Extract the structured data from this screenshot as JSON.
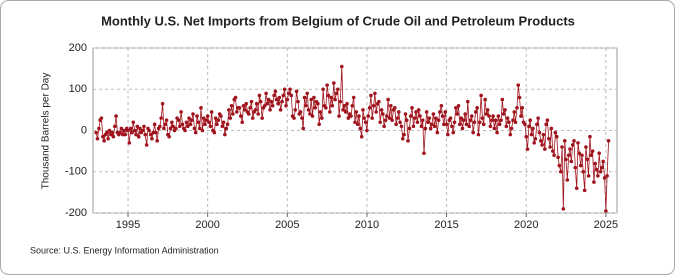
{
  "chart_data": {
    "type": "line",
    "title": "Monthly U.S. Net Imports from Belgium of Crude Oil and Petroleum Products",
    "y_label": "Thousand Barrels per Day",
    "source": "Source: U.S. Energy Information Administration",
    "xlim": [
      1992.8,
      2025.7
    ],
    "xticks": [
      1995,
      2000,
      2005,
      2010,
      2015,
      2020,
      2025
    ],
    "ylim": [
      -200,
      200
    ],
    "yticks": [
      -200,
      -100,
      0,
      100,
      200
    ],
    "grid": true,
    "series": [
      {
        "name": "Net Imports",
        "color": "#a0141e",
        "x": [
          1993.0,
          1993.08,
          1993.17,
          1993.25,
          1993.33,
          1993.42,
          1993.5,
          1993.58,
          1993.67,
          1993.75,
          1993.83,
          1993.92,
          1994.0,
          1994.08,
          1994.17,
          1994.25,
          1994.33,
          1994.42,
          1994.5,
          1994.58,
          1994.67,
          1994.75,
          1994.83,
          1994.92,
          1995.0,
          1995.08,
          1995.17,
          1995.25,
          1995.33,
          1995.42,
          1995.5,
          1995.58,
          1995.67,
          1995.75,
          1995.83,
          1995.92,
          1996.0,
          1996.08,
          1996.17,
          1996.25,
          1996.33,
          1996.42,
          1996.5,
          1996.58,
          1996.67,
          1996.75,
          1996.83,
          1996.92,
          1997.0,
          1997.08,
          1997.17,
          1997.25,
          1997.33,
          1997.42,
          1997.5,
          1997.58,
          1997.67,
          1997.75,
          1997.83,
          1997.92,
          1998.0,
          1998.08,
          1998.17,
          1998.25,
          1998.33,
          1998.42,
          1998.5,
          1998.58,
          1998.67,
          1998.75,
          1998.83,
          1998.92,
          1999.0,
          1999.08,
          1999.17,
          1999.25,
          1999.33,
          1999.42,
          1999.5,
          1999.58,
          1999.67,
          1999.75,
          1999.83,
          1999.92,
          2000.0,
          2000.08,
          2000.17,
          2000.25,
          2000.33,
          2000.42,
          2000.5,
          2000.58,
          2000.67,
          2000.75,
          2000.83,
          2000.92,
          2001.0,
          2001.08,
          2001.17,
          2001.25,
          2001.33,
          2001.42,
          2001.5,
          2001.58,
          2001.67,
          2001.75,
          2001.83,
          2001.92,
          2002.0,
          2002.08,
          2002.17,
          2002.25,
          2002.33,
          2002.42,
          2002.5,
          2002.58,
          2002.67,
          2002.75,
          2002.83,
          2002.92,
          2003.0,
          2003.08,
          2003.17,
          2003.25,
          2003.33,
          2003.42,
          2003.5,
          2003.58,
          2003.67,
          2003.75,
          2003.83,
          2003.92,
          2004.0,
          2004.08,
          2004.17,
          2004.25,
          2004.33,
          2004.42,
          2004.5,
          2004.58,
          2004.67,
          2004.75,
          2004.83,
          2004.92,
          2005.0,
          2005.08,
          2005.17,
          2005.25,
          2005.33,
          2005.42,
          2005.5,
          2005.58,
          2005.67,
          2005.75,
          2005.83,
          2005.92,
          2006.0,
          2006.08,
          2006.17,
          2006.25,
          2006.33,
          2006.42,
          2006.5,
          2006.58,
          2006.67,
          2006.75,
          2006.83,
          2006.92,
          2007.0,
          2007.08,
          2007.17,
          2007.25,
          2007.33,
          2007.42,
          2007.5,
          2007.58,
          2007.67,
          2007.75,
          2007.83,
          2007.92,
          2008.0,
          2008.08,
          2008.17,
          2008.25,
          2008.33,
          2008.42,
          2008.5,
          2008.58,
          2008.67,
          2008.75,
          2008.83,
          2008.92,
          2009.0,
          2009.08,
          2009.17,
          2009.25,
          2009.33,
          2009.42,
          2009.5,
          2009.58,
          2009.67,
          2009.75,
          2009.83,
          2009.92,
          2010.0,
          2010.08,
          2010.17,
          2010.25,
          2010.33,
          2010.42,
          2010.5,
          2010.58,
          2010.67,
          2010.75,
          2010.83,
          2010.92,
          2011.0,
          2011.08,
          2011.17,
          2011.25,
          2011.33,
          2011.42,
          2011.5,
          2011.58,
          2011.67,
          2011.75,
          2011.83,
          2011.92,
          2012.0,
          2012.08,
          2012.17,
          2012.25,
          2012.33,
          2012.42,
          2012.5,
          2012.58,
          2012.67,
          2012.75,
          2012.83,
          2012.92,
          2013.0,
          2013.08,
          2013.17,
          2013.25,
          2013.33,
          2013.42,
          2013.5,
          2013.58,
          2013.67,
          2013.75,
          2013.83,
          2013.92,
          2014.0,
          2014.08,
          2014.17,
          2014.25,
          2014.33,
          2014.42,
          2014.5,
          2014.58,
          2014.67,
          2014.75,
          2014.83,
          2014.92,
          2015.0,
          2015.08,
          2015.17,
          2015.25,
          2015.33,
          2015.42,
          2015.5,
          2015.58,
          2015.67,
          2015.75,
          2015.83,
          2015.92,
          2016.0,
          2016.08,
          2016.17,
          2016.25,
          2016.33,
          2016.42,
          2016.5,
          2016.58,
          2016.67,
          2016.75,
          2016.83,
          2016.92,
          2017.0,
          2017.08,
          2017.17,
          2017.25,
          2017.33,
          2017.42,
          2017.5,
          2017.58,
          2017.67,
          2017.75,
          2017.83,
          2017.92,
          2018.0,
          2018.08,
          2018.17,
          2018.25,
          2018.33,
          2018.42,
          2018.5,
          2018.58,
          2018.67,
          2018.75,
          2018.83,
          2018.92,
          2019.0,
          2019.08,
          2019.17,
          2019.25,
          2019.33,
          2019.42,
          2019.5,
          2019.58,
          2019.67,
          2019.75,
          2019.83,
          2019.92,
          2020.0,
          2020.08,
          2020.17,
          2020.25,
          2020.33,
          2020.42,
          2020.5,
          2020.58,
          2020.67,
          2020.75,
          2020.83,
          2020.92,
          2021.0,
          2021.08,
          2021.17,
          2021.25,
          2021.33,
          2021.42,
          2021.5,
          2021.58,
          2021.67,
          2021.75,
          2021.83,
          2021.92,
          2022.0,
          2022.08,
          2022.17,
          2022.25,
          2022.33,
          2022.42,
          2022.5,
          2022.58,
          2022.67,
          2022.75,
          2022.83,
          2022.92,
          2023.0,
          2023.08,
          2023.17,
          2023.25,
          2023.33,
          2023.42,
          2023.5,
          2023.58,
          2023.67,
          2023.75,
          2023.83,
          2023.92,
          2024.0,
          2024.08,
          2024.17,
          2024.25,
          2024.33,
          2024.42,
          2024.5,
          2024.58,
          2024.67,
          2024.75,
          2024.83,
          2024.92,
          2025.0,
          2025.08,
          2025.17
        ],
        "values": [
          -5,
          -20,
          5,
          25,
          30,
          -15,
          -25,
          -10,
          -5,
          -20,
          0,
          -10,
          -5,
          -15,
          10,
          35,
          -5,
          -10,
          -5,
          5,
          -10,
          0,
          -10,
          5,
          0,
          -30,
          5,
          -5,
          20,
          0,
          -10,
          10,
          -15,
          5,
          -5,
          0,
          10,
          -10,
          -35,
          5,
          0,
          -10,
          -20,
          -5,
          15,
          -5,
          -25,
          5,
          10,
          30,
          65,
          5,
          15,
          25,
          -10,
          -15,
          5,
          20,
          10,
          0,
          5,
          30,
          25,
          10,
          45,
          15,
          5,
          0,
          20,
          10,
          30,
          15,
          25,
          40,
          5,
          -5,
          35,
          20,
          5,
          55,
          0,
          30,
          15,
          25,
          35,
          20,
          10,
          45,
          0,
          -5,
          30,
          15,
          25,
          40,
          35,
          10,
          20,
          -10,
          5,
          15,
          50,
          30,
          60,
          40,
          75,
          80,
          45,
          55,
          55,
          35,
          20,
          60,
          50,
          65,
          45,
          40,
          55,
          70,
          30,
          45,
          50,
          65,
          40,
          85,
          70,
          30,
          55,
          60,
          90,
          65,
          75,
          50,
          70,
          60,
          85,
          95,
          75,
          65,
          80,
          50,
          70,
          85,
          100,
          60,
          75,
          90,
          100,
          85,
          35,
          30,
          50,
          95,
          70,
          40,
          45,
          30,
          5,
          80,
          60,
          90,
          50,
          40,
          75,
          35,
          80,
          55,
          70,
          65,
          15,
          45,
          30,
          100,
          60,
          55,
          110,
          85,
          45,
          80,
          60,
          115,
          75,
          90,
          100,
          35,
          70,
          155,
          50,
          60,
          45,
          65,
          30,
          40,
          35,
          60,
          80,
          20,
          45,
          15,
          35,
          5,
          -15,
          50,
          30,
          20,
          0,
          35,
          55,
          85,
          30,
          60,
          90,
          45,
          65,
          70,
          20,
          50,
          40,
          10,
          25,
          35,
          75,
          30,
          60,
          25,
          50,
          55,
          15,
          30,
          45,
          20,
          10,
          -20,
          -10,
          40,
          25,
          -25,
          5,
          35,
          55,
          10,
          30,
          45,
          20,
          50,
          35,
          10,
          25,
          -55,
          5,
          45,
          20,
          30,
          5,
          15,
          40,
          10,
          30,
          -5,
          25,
          45,
          60,
          35,
          15,
          45,
          15,
          -10,
          25,
          30,
          10,
          -5,
          20,
          55,
          40,
          60,
          15,
          30,
          5,
          25,
          40,
          15,
          70,
          10,
          25,
          35,
          -5,
          20,
          45,
          55,
          -10,
          20,
          85,
          30,
          15,
          75,
          40,
          50,
          35,
          10,
          25,
          35,
          5,
          25,
          -5,
          35,
          15,
          25,
          75,
          40,
          50,
          10,
          30,
          20,
          -10,
          5,
          25,
          45,
          20,
          55,
          110,
          80,
          35,
          55,
          20,
          15,
          -15,
          -45,
          10,
          25,
          -10,
          5,
          -30,
          -20,
          15,
          30,
          -5,
          -25,
          -35,
          -10,
          -45,
          15,
          25,
          -20,
          -40,
          5,
          -50,
          -60,
          -5,
          -15,
          -65,
          -85,
          -100,
          -40,
          -190,
          -25,
          -70,
          -120,
          -60,
          -45,
          -75,
          -35,
          -25,
          -90,
          -140,
          -30,
          -55,
          -85,
          -60,
          -100,
          -145,
          -40,
          -70,
          -110,
          -15,
          -60,
          -50,
          -125,
          -80,
          -95,
          -110,
          -55,
          -100,
          -90,
          -75,
          -115,
          -195,
          -110,
          -25
        ]
      }
    ]
  }
}
